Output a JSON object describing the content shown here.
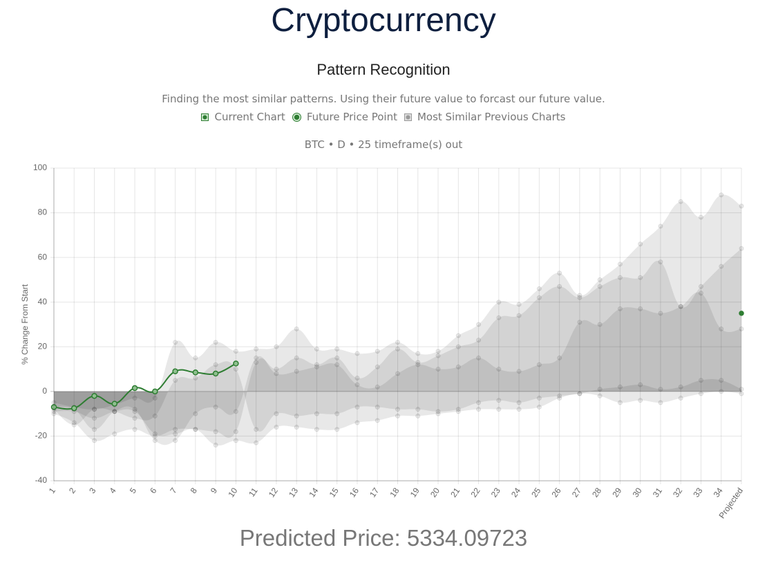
{
  "header": {
    "title": "Cryptocurrency",
    "subtitle": "Pattern Recognition",
    "description": "Finding the most similar patterns. Using their future value to forcast our future value."
  },
  "chart_data": {
    "type": "line",
    "title": "BTC • D • 25 timeframe(s) out",
    "y_label": "% Change From Start",
    "categories": [
      "1",
      "2",
      "3",
      "4",
      "5",
      "6",
      "7",
      "8",
      "9",
      "10",
      "11",
      "12",
      "13",
      "14",
      "15",
      "16",
      "17",
      "18",
      "19",
      "20",
      "21",
      "22",
      "23",
      "24",
      "25",
      "26",
      "27",
      "28",
      "29",
      "30",
      "31",
      "32",
      "33",
      "34",
      "Projected"
    ],
    "ylim": [
      -40,
      100
    ],
    "yticks": [
      -40,
      -20,
      0,
      20,
      40,
      60,
      80,
      100
    ],
    "grid": true,
    "series": [
      {
        "name": "Current Chart",
        "color": "#2e7d32",
        "values": [
          -7,
          -7.5,
          -2,
          -5.5,
          1.5,
          0,
          9,
          8.5,
          8,
          12.5,
          null,
          null,
          null,
          null,
          null,
          null,
          null,
          null,
          null,
          null,
          null,
          null,
          null,
          null,
          null,
          null,
          null,
          null,
          null,
          null,
          null,
          null,
          null,
          null,
          null
        ]
      },
      {
        "name": "Future Price Point",
        "color": "#2e7d32",
        "values": [
          null,
          null,
          null,
          null,
          null,
          null,
          null,
          null,
          null,
          null,
          null,
          null,
          null,
          null,
          null,
          null,
          null,
          null,
          null,
          null,
          null,
          null,
          null,
          null,
          null,
          null,
          null,
          null,
          null,
          null,
          null,
          null,
          null,
          null,
          35
        ]
      }
    ],
    "similar": {
      "name": "Most Similar Previous Charts",
      "color": "#999999",
      "series": [
        {
          "values": [
            -5,
            -7,
            -8,
            -6,
            -3,
            -3,
            22,
            15,
            22,
            18,
            19,
            20,
            28,
            19,
            19,
            17,
            18,
            22,
            17,
            18,
            25,
            30,
            40,
            39,
            46,
            53,
            43,
            50,
            57,
            66,
            74,
            85,
            78,
            88,
            83
          ]
        },
        {
          "values": [
            -10,
            -14,
            -22,
            -19,
            -17,
            -20,
            -17,
            -17,
            -18,
            -18,
            13,
            10,
            15,
            12,
            15,
            6,
            11,
            19,
            13,
            16,
            20,
            23,
            33,
            34,
            42,
            47,
            42,
            47,
            51,
            51,
            58,
            38,
            47,
            56,
            64
          ]
        },
        {
          "values": [
            -7,
            -8,
            -17,
            -9,
            -8,
            -22,
            -22,
            -10,
            -7,
            -9,
            15,
            8,
            9,
            11,
            12,
            3,
            2,
            8,
            12,
            10,
            11,
            15,
            10,
            9,
            12,
            15,
            31,
            30,
            37,
            37,
            35,
            38,
            44,
            28,
            28
          ]
        },
        {
          "values": [
            -8,
            -15,
            -8,
            -9,
            -12,
            -11,
            5,
            6,
            12,
            10,
            -17,
            -10,
            -11,
            -10,
            -10,
            -7,
            -7,
            -8,
            -8,
            -9,
            -8,
            -5,
            -4,
            -5,
            -3,
            -2,
            -1,
            1,
            2,
            3,
            1,
            2,
            5,
            5,
            1
          ]
        },
        {
          "values": [
            -9,
            -9,
            -12,
            -9,
            -9,
            -19,
            -19,
            -17,
            -24,
            -22,
            -23,
            -16,
            -16,
            -17,
            -17,
            -14,
            -13,
            -11,
            -11,
            -10,
            -9,
            -8,
            -8,
            -8,
            -7,
            -3,
            -1,
            -2,
            -5,
            -4,
            -5,
            -3,
            -1,
            0,
            -1
          ]
        }
      ]
    }
  },
  "footer": {
    "label": "Predicted Price:",
    "value": 5334.09723
  }
}
